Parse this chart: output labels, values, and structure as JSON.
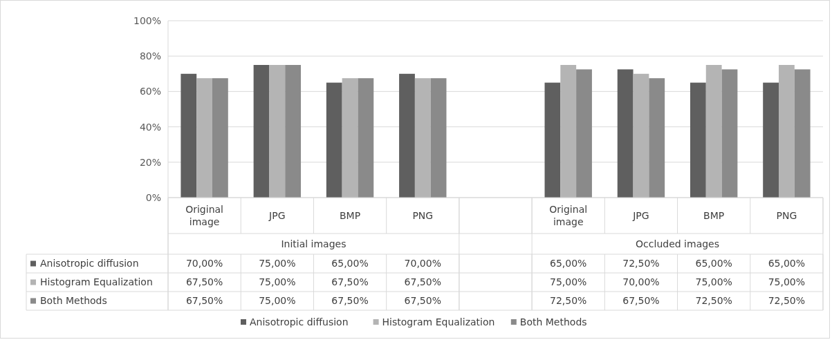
{
  "chart_data": {
    "type": "bar",
    "categories": [
      "Original image",
      "JPG",
      "BMP",
      "PNG",
      null,
      "Original image",
      "JPG",
      "BMP",
      "PNG"
    ],
    "series": [
      {
        "name": "Anisotropic diffusion",
        "color": "#5f5f5f",
        "values": [
          70,
          75,
          65,
          70,
          null,
          65,
          72.5,
          65,
          65
        ],
        "value_labels": [
          "70,00%",
          "75,00%",
          "65,00%",
          "70,00%",
          null,
          "65,00%",
          "72,50%",
          "65,00%",
          "65,00%"
        ]
      },
      {
        "name": "Histogram Equalization",
        "color": "#b4b4b4",
        "values": [
          67.5,
          75,
          67.5,
          67.5,
          null,
          75,
          70,
          75,
          75
        ],
        "value_labels": [
          "67,50%",
          "75,00%",
          "67,50%",
          "67,50%",
          null,
          "75,00%",
          "70,00%",
          "75,00%",
          "75,00%"
        ]
      },
      {
        "name": "Both Methods",
        "color": "#8a8a8a",
        "values": [
          67.5,
          75,
          67.5,
          67.5,
          null,
          72.5,
          67.5,
          72.5,
          72.5
        ],
        "value_labels": [
          "67,50%",
          "75,00%",
          "67,50%",
          "67,50%",
          null,
          "72,50%",
          "67,50%",
          "72,50%",
          "72,50%"
        ]
      }
    ],
    "ylim": [
      0,
      100
    ],
    "yticks": [
      {
        "value": 0,
        "label": "0%"
      },
      {
        "value": 20,
        "label": "20%"
      },
      {
        "value": 40,
        "label": "40%"
      },
      {
        "value": 60,
        "label": "60%"
      },
      {
        "value": 80,
        "label": "80%"
      },
      {
        "value": 100,
        "label": "100%"
      }
    ],
    "grid": "y",
    "legend": "bottom",
    "annotations": [
      "Initial images",
      "Occluded images"
    ]
  }
}
